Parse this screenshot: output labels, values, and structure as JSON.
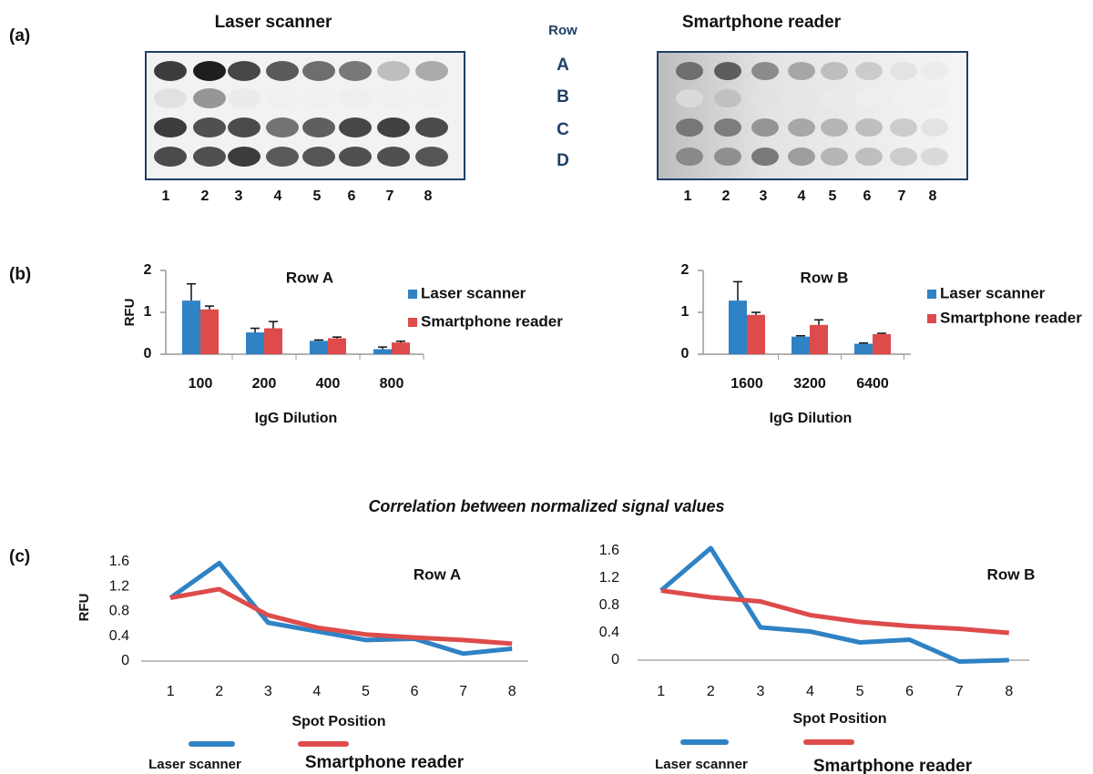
{
  "panel_labels": [
    "(a)",
    "(b)",
    "(c)"
  ],
  "blots": {
    "titles": [
      "Laser scanner",
      "Smartphone reader"
    ],
    "row_header": "Row",
    "rows": [
      "A",
      "B",
      "C",
      "D"
    ],
    "columns": [
      "1",
      "2",
      "3",
      "4",
      "5",
      "6",
      "7",
      "8"
    ]
  },
  "correlation_title": "Correlation between normalized signal values",
  "chart_data": [
    {
      "type": "bar",
      "title": "Row A",
      "x_label": "IgG Dilution",
      "y_label": "RFU",
      "categories": [
        "100",
        "200",
        "400",
        "800"
      ],
      "ylim": [
        0,
        2
      ],
      "yticks": [
        0,
        1,
        2
      ],
      "series": [
        {
          "name": "Laser scanner",
          "color": "#2f82c4",
          "values": [
            1.28,
            0.52,
            0.32,
            0.12
          ],
          "errors": [
            0.4,
            0.1,
            0.02,
            0.05
          ]
        },
        {
          "name": "Smartphone reader",
          "color": "#de4b4b",
          "values": [
            1.07,
            0.62,
            0.38,
            0.28
          ],
          "errors": [
            0.08,
            0.16,
            0.03,
            0.03
          ]
        }
      ]
    },
    {
      "type": "bar",
      "title": "Row B",
      "x_label": "IgG Dilution",
      "categories": [
        "1600",
        "3200",
        "6400"
      ],
      "ylim": [
        0,
        2
      ],
      "yticks": [
        0,
        1,
        2
      ],
      "series": [
        {
          "name": "Laser scanner",
          "color": "#2f82c4",
          "values": [
            1.28,
            0.42,
            0.25
          ],
          "errors": [
            0.45,
            0.02,
            0.02
          ]
        },
        {
          "name": "Smartphone reader",
          "color": "#de4b4b",
          "values": [
            0.94,
            0.7,
            0.48
          ],
          "errors": [
            0.06,
            0.12,
            0.02
          ]
        }
      ]
    },
    {
      "type": "line",
      "title": "Row A",
      "x_label": "Spot Position",
      "y_label": "RFU",
      "x": [
        1,
        2,
        3,
        4,
        5,
        6,
        7,
        8
      ],
      "xlim": [
        0.4,
        8.4
      ],
      "xticks": [
        1,
        2,
        3,
        4,
        5,
        6,
        7,
        8
      ],
      "ylim": [
        0,
        1.6
      ],
      "yticks": [
        0,
        0.4,
        0.8,
        1.2,
        1.6
      ],
      "series": [
        {
          "name": "Laser scanner",
          "color": "#2f82c4",
          "values": [
            1.02,
            1.58,
            0.62,
            0.48,
            0.34,
            0.36,
            0.12,
            0.2
          ]
        },
        {
          "name": "Smartphone reader",
          "color": "#de4b4b",
          "values": [
            1.02,
            1.16,
            0.74,
            0.54,
            0.43,
            0.38,
            0.34,
            0.28
          ]
        }
      ]
    },
    {
      "type": "line",
      "title": "Row B",
      "x_label": "Spot Position",
      "x": [
        1,
        2,
        3,
        4,
        5,
        6,
        7,
        8
      ],
      "xlim": [
        0.4,
        8.4
      ],
      "xticks": [
        1,
        2,
        3,
        4,
        5,
        6,
        7,
        8
      ],
      "ylim": [
        -0.1,
        1.7
      ],
      "yticks": [
        0,
        0.4,
        0.8,
        1.2,
        1.6
      ],
      "series": [
        {
          "name": "Laser scanner",
          "color": "#2f82c4",
          "values": [
            1.02,
            1.64,
            0.48,
            0.42,
            0.26,
            0.3,
            -0.02,
            0.0
          ]
        },
        {
          "name": "Smartphone reader",
          "color": "#de4b4b",
          "values": [
            1.02,
            0.92,
            0.86,
            0.66,
            0.56,
            0.5,
            0.46,
            0.4
          ]
        }
      ]
    }
  ]
}
